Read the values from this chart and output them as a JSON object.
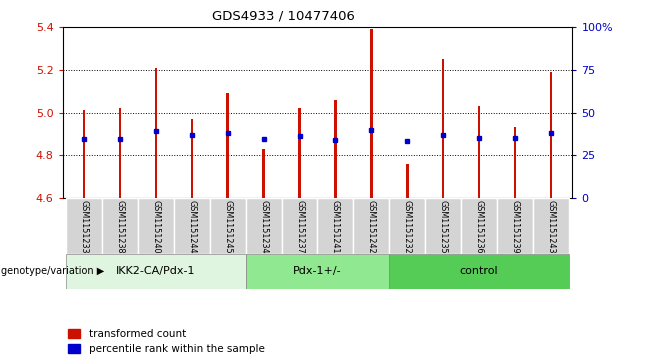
{
  "title": "GDS4933 / 10477406",
  "samples": [
    "GSM1151233",
    "GSM1151238",
    "GSM1151240",
    "GSM1151244",
    "GSM1151245",
    "GSM1151234",
    "GSM1151237",
    "GSM1151241",
    "GSM1151242",
    "GSM1151232",
    "GSM1151235",
    "GSM1151236",
    "GSM1151239",
    "GSM1151243"
  ],
  "bar_values": [
    5.01,
    5.02,
    5.21,
    4.97,
    5.09,
    4.83,
    5.02,
    5.06,
    5.39,
    4.76,
    5.25,
    5.03,
    4.93,
    5.19
  ],
  "percentile_values": [
    4.875,
    4.875,
    4.915,
    4.895,
    4.905,
    4.875,
    4.89,
    4.87,
    4.92,
    4.865,
    4.895,
    4.88,
    4.88,
    4.905
  ],
  "groups": [
    {
      "label": "IKK2-CA/Pdx-1",
      "start": 0,
      "end": 5,
      "color": "#dff5df"
    },
    {
      "label": "Pdx-1+/-",
      "start": 5,
      "end": 9,
      "color": "#90e890"
    },
    {
      "label": "control",
      "start": 9,
      "end": 14,
      "color": "#55cc55"
    }
  ],
  "bar_color": "#cc1100",
  "dot_color": "#0000cc",
  "ylim_left": [
    4.6,
    5.4
  ],
  "ylim_right": [
    0,
    100
  ],
  "yticks_left": [
    4.6,
    4.8,
    5.0,
    5.2,
    5.4
  ],
  "yticks_right": [
    0,
    25,
    50,
    75,
    100
  ],
  "ytick_labels_right": [
    "0",
    "25",
    "50",
    "75",
    "100%"
  ],
  "ylabel_left_color": "#cc1100",
  "ylabel_right_color": "#0000cc",
  "legend_items": [
    "transformed count",
    "percentile rank within the sample"
  ],
  "genotype_label": "genotype/variation",
  "bar_width": 0.07,
  "gray_color": "#d4d4d4"
}
